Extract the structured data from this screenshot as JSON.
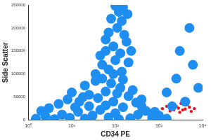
{
  "chart_data": {
    "type": "scatter",
    "x_label": "CD34 PE",
    "y_label": "Side Scatter",
    "log": "x",
    "grid": false,
    "xlim": [
      1,
      10000
    ],
    "xticks": [
      {
        "value": 1,
        "label": "10⁰"
      },
      {
        "value": 10,
        "label": "10¹"
      },
      {
        "value": 100,
        "label": "10²"
      },
      {
        "value": 1000,
        "label": "10³"
      },
      {
        "value": 10000,
        "label": "10⁴"
      }
    ],
    "ylim": [
      0,
      250000
    ],
    "yticks": [
      0,
      50000,
      100000,
      150000,
      200000,
      250000
    ],
    "series": [
      {
        "color": "#1f8ef1",
        "marker": "circle",
        "x": [
          1.5,
          2.5,
          4,
          6,
          9,
          14,
          20,
          30,
          45,
          70,
          100,
          150,
          220,
          330,
          500,
          700,
          1000,
          1500,
          2,
          3,
          12,
          25,
          60,
          120,
          400,
          800,
          5,
          8,
          15,
          25,
          40,
          60,
          90,
          130,
          200,
          300,
          400,
          10,
          20,
          35,
          50,
          80,
          150,
          250,
          18,
          110,
          35,
          50,
          70,
          100,
          140,
          200,
          60,
          90,
          130,
          180,
          70,
          110,
          160,
          80,
          120,
          150,
          100,
          45,
          230,
          90,
          60,
          140,
          190,
          1500,
          2500,
          4000,
          3000,
          6000,
          2000,
          5000,
          8000
        ],
        "values": [
          3000,
          8000,
          2000,
          12000,
          5000,
          18000,
          3000,
          10000,
          22000,
          6000,
          15000,
          28000,
          4000,
          12000,
          20000,
          5000,
          10000,
          3000,
          20000,
          26000,
          28000,
          30000,
          32000,
          2000,
          30000,
          18000,
          35000,
          45000,
          40000,
          55000,
          48000,
          62000,
          40000,
          70000,
          52000,
          38000,
          45000,
          60000,
          75000,
          85000,
          90000,
          80000,
          88000,
          65000,
          50000,
          58000,
          100000,
          120000,
          110000,
          130000,
          105000,
          125000,
          150000,
          160000,
          145000,
          170000,
          190000,
          200000,
          185000,
          220000,
          235000,
          245000,
          248000,
          140000,
          150000,
          100000,
          175000,
          215000,
          230000,
          60000,
          90000,
          40000,
          150000,
          120000,
          30000,
          200000,
          70000
        ]
      },
      {
        "color": "#e8141c",
        "marker": "circle",
        "x": [
          1200,
          1800,
          2500,
          3500,
          5000,
          6500,
          2000,
          3000,
          4500,
          1500,
          2800,
          4000,
          5500,
          3200,
          2200
        ],
        "values": [
          25000,
          20000,
          30000,
          22000,
          28000,
          25000,
          35000,
          17000,
          33000,
          30000,
          26000,
          24000,
          19000,
          36000,
          22000
        ]
      }
    ]
  }
}
